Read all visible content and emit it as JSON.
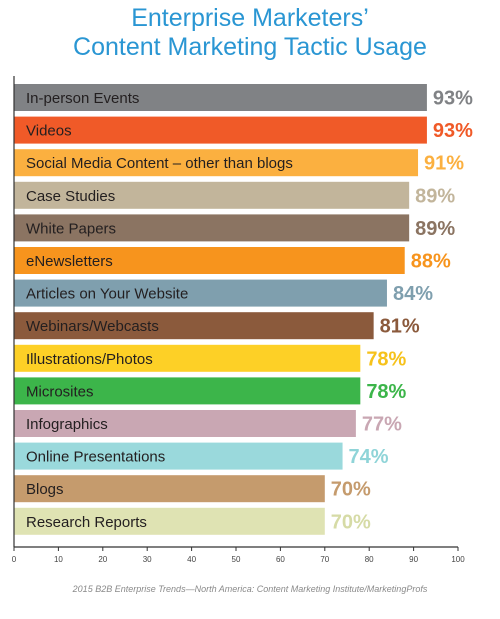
{
  "chart_data": {
    "type": "bar",
    "orientation": "horizontal",
    "title_lines": [
      "Enterprise Marketers’",
      "Content Marketing Tactic Usage"
    ],
    "xlim": [
      0,
      100
    ],
    "x_ticks": [
      0,
      10,
      20,
      30,
      40,
      50,
      60,
      70,
      80,
      90,
      100
    ],
    "grid": false,
    "bars": [
      {
        "label": "In-person Events",
        "value": 93,
        "value_label": "93%",
        "color": "#808285",
        "value_color": "#808285"
      },
      {
        "label": "Videos",
        "value": 93,
        "value_label": "93%",
        "color": "#f05a28",
        "value_color": "#f05a28"
      },
      {
        "label": "Social Media Content – other than blogs",
        "value": 91,
        "value_label": "91%",
        "color": "#fbb040",
        "value_color": "#fbb040"
      },
      {
        "label": "Case Studies",
        "value": 89,
        "value_label": "89%",
        "color": "#c2b59b",
        "value_color": "#c2b59b"
      },
      {
        "label": "White Papers",
        "value": 89,
        "value_label": "89%",
        "color": "#8b7462",
        "value_color": "#8b7462"
      },
      {
        "label": "eNewsletters",
        "value": 88,
        "value_label": "88%",
        "color": "#f7941d",
        "value_color": "#f7941d"
      },
      {
        "label": "Articles on Your Website",
        "value": 84,
        "value_label": "84%",
        "color": "#7f9fae",
        "value_color": "#7f9fae"
      },
      {
        "label": "Webinars/Webcasts",
        "value": 81,
        "value_label": "81%",
        "color": "#8b5a3c",
        "value_color": "#8b5a3c"
      },
      {
        "label": "Illustrations/Photos",
        "value": 78,
        "value_label": "78%",
        "color": "#fdd026",
        "value_color": "#f6c21b"
      },
      {
        "label": "Microsites",
        "value": 78,
        "value_label": "78%",
        "color": "#3cb54a",
        "value_color": "#3cb54a"
      },
      {
        "label": "Infographics",
        "value": 77,
        "value_label": "77%",
        "color": "#c9a7b3",
        "value_color": "#c9a7b3"
      },
      {
        "label": "Online Presentations",
        "value": 74,
        "value_label": "74%",
        "color": "#9ad9dc",
        "value_color": "#8fd4d8"
      },
      {
        "label": "Blogs",
        "value": 70,
        "value_label": "70%",
        "color": "#c59b6d",
        "value_color": "#c59b6d"
      },
      {
        "label": "Research Reports",
        "value": 70,
        "value_label": "70%",
        "color": "#dfe3b3",
        "value_color": "#d6dba6"
      }
    ]
  },
  "source": "2015 B2B Enterprise Trends—North America: Content Marketing Institute/MarketingProfs",
  "colors": {
    "title": "#2a96d3",
    "axis": "#333333",
    "bar_text": "#231f20"
  }
}
